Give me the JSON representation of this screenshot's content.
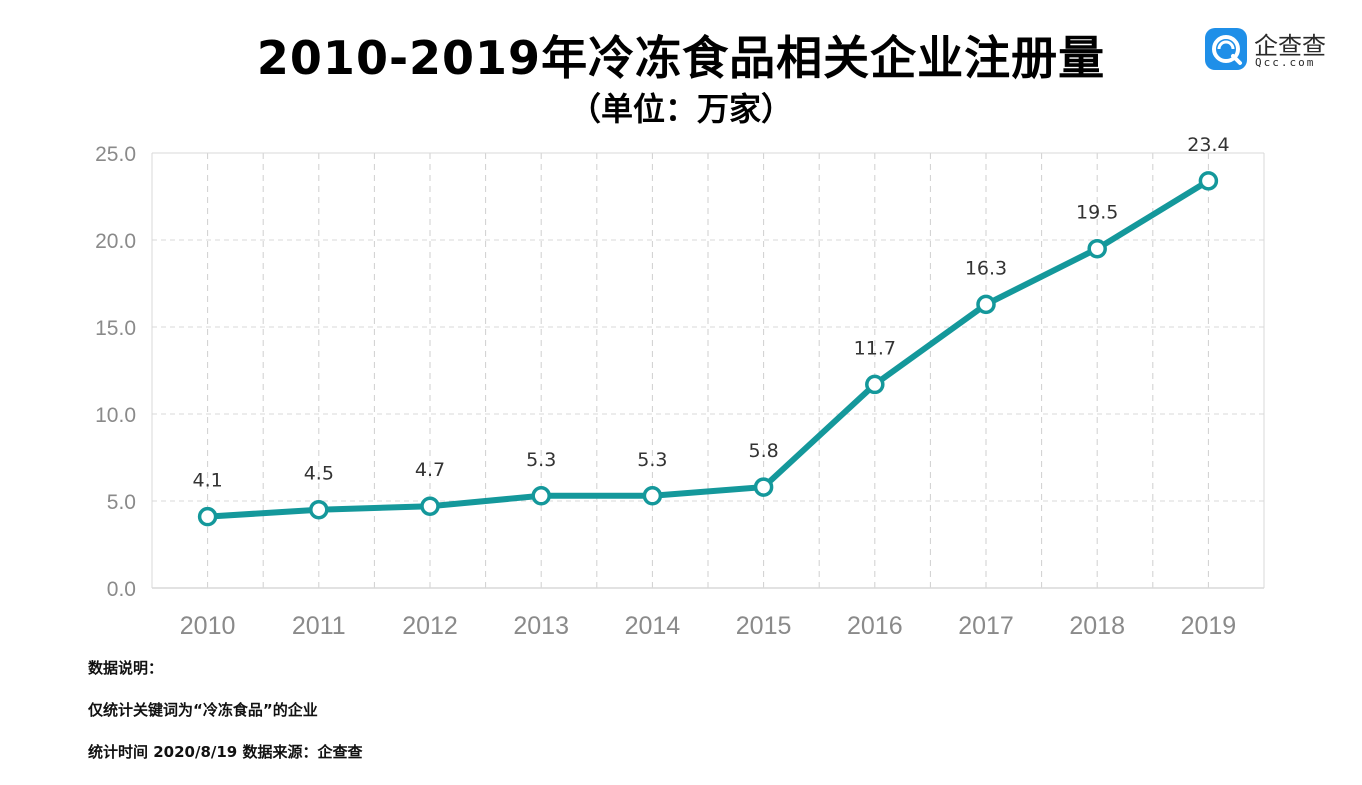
{
  "header": {
    "title": "2010-2019年冷冻食品相关企业注册量",
    "subtitle": "（单位：万家）"
  },
  "logo": {
    "name": "企查查",
    "domain": "Qcc.com",
    "color": "#1f8fe8",
    "icon": "qcc-logo-icon"
  },
  "chart_data": {
    "type": "line",
    "categories": [
      "2010",
      "2011",
      "2012",
      "2013",
      "2014",
      "2015",
      "2016",
      "2017",
      "2018",
      "2019"
    ],
    "series": [
      {
        "values": [
          4.1,
          4.5,
          4.7,
          5.3,
          5.3,
          5.8,
          11.7,
          16.3,
          19.5,
          23.4
        ],
        "color": "#14989b"
      }
    ],
    "data_labels": [
      "4.1",
      "4.5",
      "4.7",
      "5.3",
      "5.3",
      "5.8",
      "11.7",
      "16.3",
      "19.5",
      "23.4"
    ],
    "yticks": [
      "0.0",
      "5.0",
      "10.0",
      "15.0",
      "20.0",
      "25.0"
    ],
    "ylim": [
      0,
      25
    ],
    "xlabel": "",
    "ylabel": "",
    "grid": true,
    "marker": "hollow-circle"
  },
  "notes": {
    "heading": "数据说明：",
    "line1": "仅统计关键词为“冷冻食品”的企业",
    "line2": "统计时间 2020/8/19  数据来源：企查查"
  }
}
